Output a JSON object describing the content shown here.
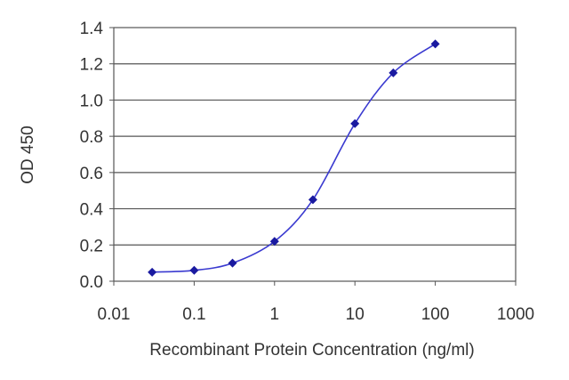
{
  "chart_data": {
    "type": "scatter",
    "title": "",
    "xlabel": "Recombinant Protein Concentration (ng/ml)",
    "ylabel": "OD 450",
    "x_scale": "log",
    "xlim": [
      0.01,
      1000
    ],
    "ylim": [
      0.0,
      1.4
    ],
    "x_ticks": [
      "0.01",
      "0.1",
      "1",
      "10",
      "100",
      "1000"
    ],
    "y_ticks": [
      "0.0",
      "0.2",
      "0.4",
      "0.6",
      "0.8",
      "1.0",
      "1.2",
      "1.4"
    ],
    "grid": "horizontal",
    "legend": "none",
    "fit_curve": "sigmoidal",
    "series": [
      {
        "x": [
          0.03,
          0.1,
          0.3,
          1,
          3,
          10,
          30,
          100
        ],
        "y": [
          0.05,
          0.06,
          0.1,
          0.22,
          0.45,
          0.87,
          1.15,
          1.31
        ]
      }
    ],
    "colors": {
      "marker": "#1a1aa0",
      "line": "#3a3ad0",
      "grid": "#555555",
      "frame": "#555555",
      "text": "#333333"
    }
  }
}
